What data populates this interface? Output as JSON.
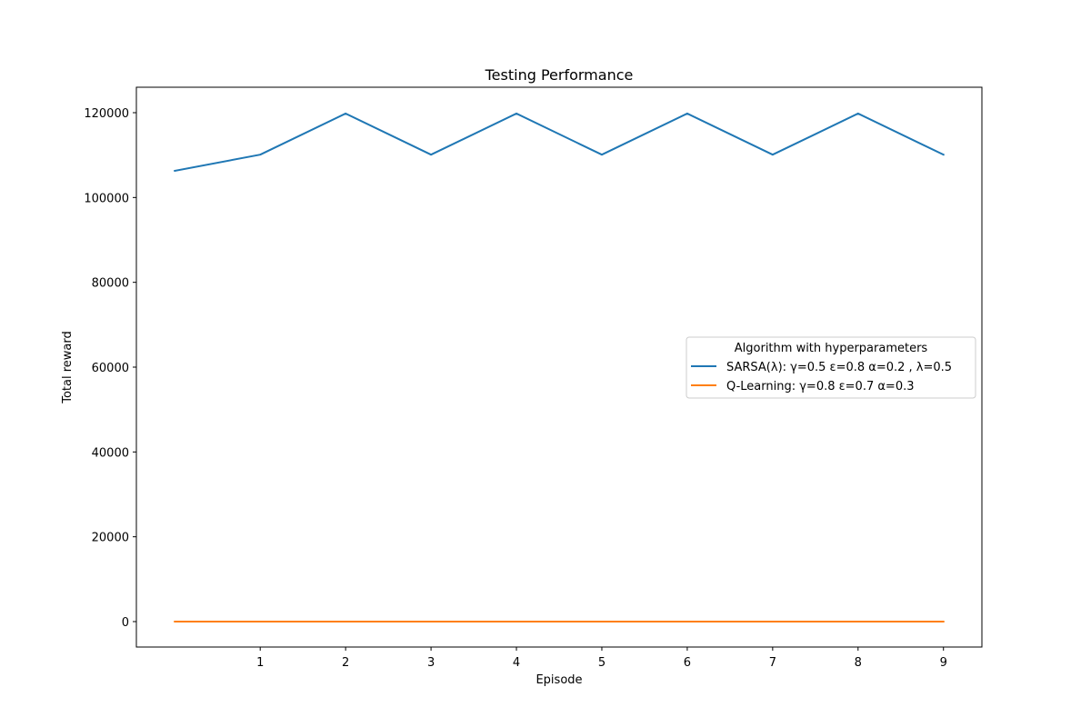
{
  "chart_data": {
    "type": "line",
    "title": "Testing Performance",
    "xlabel": "Episode",
    "ylabel": "Total reward",
    "x": [
      0,
      1,
      2,
      3,
      4,
      5,
      6,
      7,
      8,
      9
    ],
    "xticks": [
      1,
      2,
      3,
      4,
      5,
      6,
      7,
      8,
      9
    ],
    "yticks": [
      0,
      20000,
      40000,
      60000,
      80000,
      100000,
      120000
    ],
    "xlim": [
      -0.45,
      9.45
    ],
    "ylim": [
      -6000,
      126000
    ],
    "grid": false,
    "legend": {
      "title": "Algorithm with hyperparameters",
      "placement": "center-right"
    },
    "series": [
      {
        "name": "SARSA(λ): γ=0.5 ε=0.8 α=0.2 , λ=0.5",
        "color": "#1f77b4",
        "values": [
          106300,
          110100,
          119800,
          110100,
          119800,
          110100,
          119800,
          110100,
          119800,
          110100
        ]
      },
      {
        "name": "Q-Learning: γ=0.8 ε=0.7 α=0.3",
        "color": "#ff7f0e",
        "values": [
          0,
          0,
          0,
          0,
          0,
          0,
          0,
          0,
          0,
          0
        ]
      }
    ]
  }
}
